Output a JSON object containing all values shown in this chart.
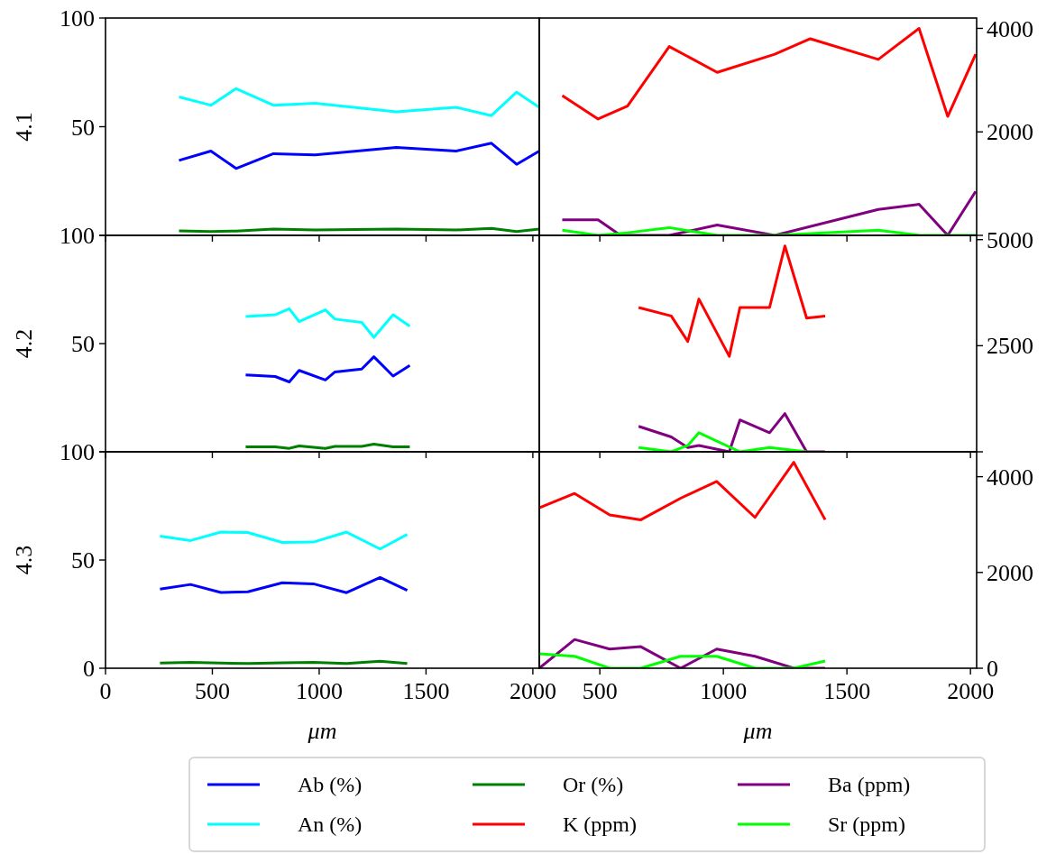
{
  "chart_data": [
    {
      "type": "line",
      "ylabel": "4.1",
      "xlim": [
        0,
        2030
      ],
      "xticks": [
        0,
        500,
        1000,
        1500,
        2000
      ],
      "ylim": [
        0,
        100
      ],
      "yticks": [
        {
          "value": 0,
          "label": null
        },
        50,
        100
      ],
      "tick_labels": "y",
      "x": [
        344,
        493,
        611,
        786,
        981,
        1361,
        1641,
        1806,
        1924,
        2030
      ],
      "series": [
        {
          "color": "#0000ff",
          "values": [
            34.5,
            38.8,
            30.8,
            37.6,
            37.0,
            40.5,
            38.8,
            42.4,
            32.7,
            38.8
          ]
        },
        {
          "color": "#00ffff",
          "values": [
            63.7,
            59.9,
            67.5,
            59.9,
            60.8,
            56.8,
            58.9,
            55.1,
            65.9,
            58.9
          ]
        },
        {
          "color": "#008000",
          "values": [
            2.1,
            1.8,
            2.0,
            2.9,
            2.5,
            2.9,
            2.5,
            3.2,
            1.8,
            2.9
          ]
        }
      ]
    },
    {
      "type": "line",
      "xlim": [
        255,
        2025
      ],
      "xticks": [
        500,
        1000,
        1500,
        2000
      ],
      "y2lim": [
        0,
        4200
      ],
      "y2ticks": [
        {
          "value": 0,
          "label": null
        },
        2000,
        4000
      ],
      "tick_labels": "y",
      "series": [
        {
          "color": "#ff0000",
          "axis": "y2",
          "x": [
            348,
            493,
            612,
            781,
            975,
            1208,
            1352,
            1627,
            1792,
            1908,
            2021
          ],
          "values": [
            2700,
            2250,
            2500,
            3650,
            3150,
            3500,
            3800,
            3400,
            4000,
            2300,
            3500
          ]
        },
        {
          "color": "#800080",
          "axis": "y2",
          "x": [
            348,
            493,
            584,
            781,
            975,
            1208,
            1627,
            1792,
            1908,
            2021
          ],
          "values": [
            300,
            300,
            0,
            0,
            200,
            0,
            500,
            600,
            0,
            850
          ]
        },
        {
          "color": "#00ff00",
          "axis": "y2",
          "x": [
            348,
            493,
            612,
            781,
            975,
            1208,
            1627,
            1792,
            2021
          ],
          "values": [
            100,
            0,
            50,
            150,
            0,
            0,
            100,
            0,
            0
          ]
        }
      ]
    },
    {
      "type": "line",
      "ylabel": "4.2",
      "xlim": [
        0,
        2030
      ],
      "xticks": [
        0,
        500,
        1000,
        1500,
        2000
      ],
      "ylim": [
        0,
        100
      ],
      "yticks": [
        {
          "value": 0,
          "label": null
        },
        50,
        100
      ],
      "tick_labels": "y",
      "x": [
        656,
        794,
        860,
        906,
        1029,
        1074,
        1199,
        1256,
        1346,
        1424
      ],
      "series": [
        {
          "color": "#0000ff",
          "values": [
            35.5,
            34.8,
            32.3,
            37.6,
            33.2,
            36.9,
            38.2,
            43.9,
            35.0,
            39.9
          ]
        },
        {
          "color": "#00ffff",
          "values": [
            62.5,
            63.3,
            66.1,
            60.2,
            65.6,
            61.3,
            59.8,
            52.9,
            63.3,
            58.0
          ]
        },
        {
          "color": "#008000",
          "values": [
            2.3,
            2.3,
            1.6,
            2.7,
            1.6,
            2.5,
            2.5,
            3.5,
            2.3,
            2.3
          ]
        }
      ]
    },
    {
      "type": "line",
      "xlim": [
        255,
        2025
      ],
      "xticks": [
        500,
        1000,
        1500,
        2000
      ],
      "y2lim": [
        0,
        5100
      ],
      "y2ticks": [
        {
          "value": 0,
          "label": null
        },
        2500,
        5000
      ],
      "tick_labels": "y",
      "x": [
        657,
        789,
        856,
        901,
        1024,
        1067,
        1187,
        1249,
        1337,
        1412
      ],
      "series": [
        {
          "color": "#ff0000",
          "axis": "y2",
          "values": [
            3400,
            3200,
            2600,
            3600,
            2250,
            3400,
            3400,
            4850,
            3150,
            3200
          ]
        },
        {
          "color": "#800080",
          "axis": "y2",
          "values": [
            600,
            350,
            100,
            150,
            0,
            750,
            450,
            900,
            0,
            0
          ]
        },
        {
          "color": "#00ff00",
          "axis": "y2",
          "x": [
            657,
            789,
            856,
            901,
            1067,
            1187,
            1337
          ],
          "values": [
            100,
            0,
            150,
            450,
            0,
            100,
            0
          ]
        }
      ]
    },
    {
      "type": "line",
      "ylabel": "4.3",
      "xlabel": "μm",
      "xlim": [
        0,
        2030
      ],
      "xticks": [
        0,
        500,
        1000,
        1500,
        2000
      ],
      "ylim": [
        0,
        100
      ],
      "yticks": [
        0,
        50,
        100
      ],
      "legend": "bottom",
      "x": [
        255,
        398,
        540,
        666,
        827,
        973,
        1128,
        1285,
        1412
      ],
      "series": [
        {
          "name": "Ab (%)",
          "color": "#0000ff",
          "values": [
            36.6,
            38.7,
            35.0,
            35.3,
            39.5,
            39.0,
            34.9,
            41.9,
            36.0
          ]
        },
        {
          "name": "An (%)",
          "color": "#00ffff",
          "values": [
            61.0,
            59.0,
            62.9,
            62.7,
            58.1,
            58.3,
            62.9,
            55.1,
            61.8
          ]
        },
        {
          "name": "Or (%)",
          "color": "#008000",
          "values": [
            2.4,
            2.7,
            2.4,
            2.2,
            2.5,
            2.7,
            2.2,
            3.2,
            2.2
          ]
        }
      ]
    },
    {
      "type": "line",
      "xlabel": "μm",
      "xlim": [
        255,
        2025
      ],
      "xticks": [
        500,
        1000,
        1500,
        2000
      ],
      "y2lim": [
        0,
        4520
      ],
      "y2ticks": [
        0,
        2000,
        4000
      ],
      "legend": "bottom",
      "x": [
        255,
        398,
        540,
        666,
        827,
        973,
        1128,
        1285,
        1412
      ],
      "series": [
        {
          "name": "K (ppm)",
          "color": "#ff0000",
          "axis": "y2",
          "values": [
            3350,
            3650,
            3200,
            3100,
            3550,
            3900,
            3150,
            4300,
            3100
          ]
        },
        {
          "name": "Ba (ppm)",
          "color": "#800080",
          "axis": "y2",
          "values": [
            0,
            600,
            400,
            450,
            0,
            400,
            250,
            0,
            0
          ]
        },
        {
          "name": "Sr (ppm)",
          "color": "#00ff00",
          "axis": "y2",
          "values": [
            300,
            250,
            0,
            0,
            250,
            250,
            0,
            0,
            150
          ]
        }
      ]
    }
  ]
}
